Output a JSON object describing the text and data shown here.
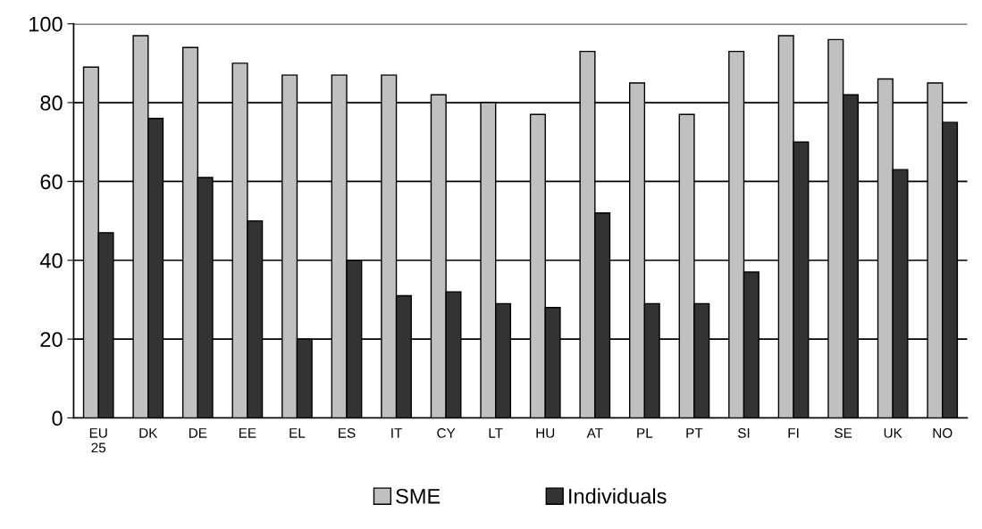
{
  "chart_data": {
    "type": "bar",
    "categories": [
      "EU\n25",
      "DK",
      "DE",
      "EE",
      "EL",
      "ES",
      "IT",
      "CY",
      "LT",
      "HU",
      "AT",
      "PL",
      "PT",
      "SI",
      "FI",
      "SE",
      "UK",
      "NO"
    ],
    "series": [
      {
        "name": "SME",
        "color": "#c0c0c0",
        "values": [
          89,
          97,
          94,
          90,
          87,
          87,
          87,
          82,
          80,
          77,
          93,
          85,
          77,
          93,
          97,
          96,
          86,
          85
        ]
      },
      {
        "name": "Individuals",
        "color": "#333333",
        "values": [
          47,
          76,
          61,
          50,
          20,
          40,
          31,
          32,
          29,
          28,
          52,
          29,
          29,
          37,
          70,
          82,
          63,
          75
        ]
      }
    ],
    "ylim": [
      0,
      100
    ],
    "yticks": [
      0,
      20,
      40,
      60,
      80,
      100
    ],
    "grid": "y",
    "legend": "bottom"
  }
}
